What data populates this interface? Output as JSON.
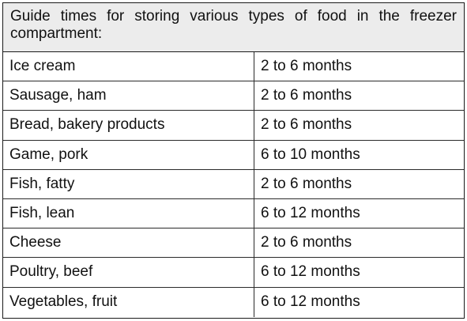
{
  "table": {
    "caption": "Guide times for storing various types of food in the freezer compartment:",
    "rows": [
      {
        "food": "Ice cream",
        "time": "2 to 6 months"
      },
      {
        "food": "Sausage, ham",
        "time": "2 to 6 months"
      },
      {
        "food": "Bread, bakery products",
        "time": "2 to 6 months"
      },
      {
        "food": "Game, pork",
        "time": "6 to 10 months"
      },
      {
        "food": "Fish, fatty",
        "time": "2 to 6 months"
      },
      {
        "food": "Fish, lean",
        "time": "6 to 12 months"
      },
      {
        "food": "Cheese",
        "time": "2 to 6 months"
      },
      {
        "food": "Poultry, beef",
        "time": "6 to 12 months"
      },
      {
        "food": "Vegetables, fruit",
        "time": "6 to 12 months"
      }
    ]
  }
}
